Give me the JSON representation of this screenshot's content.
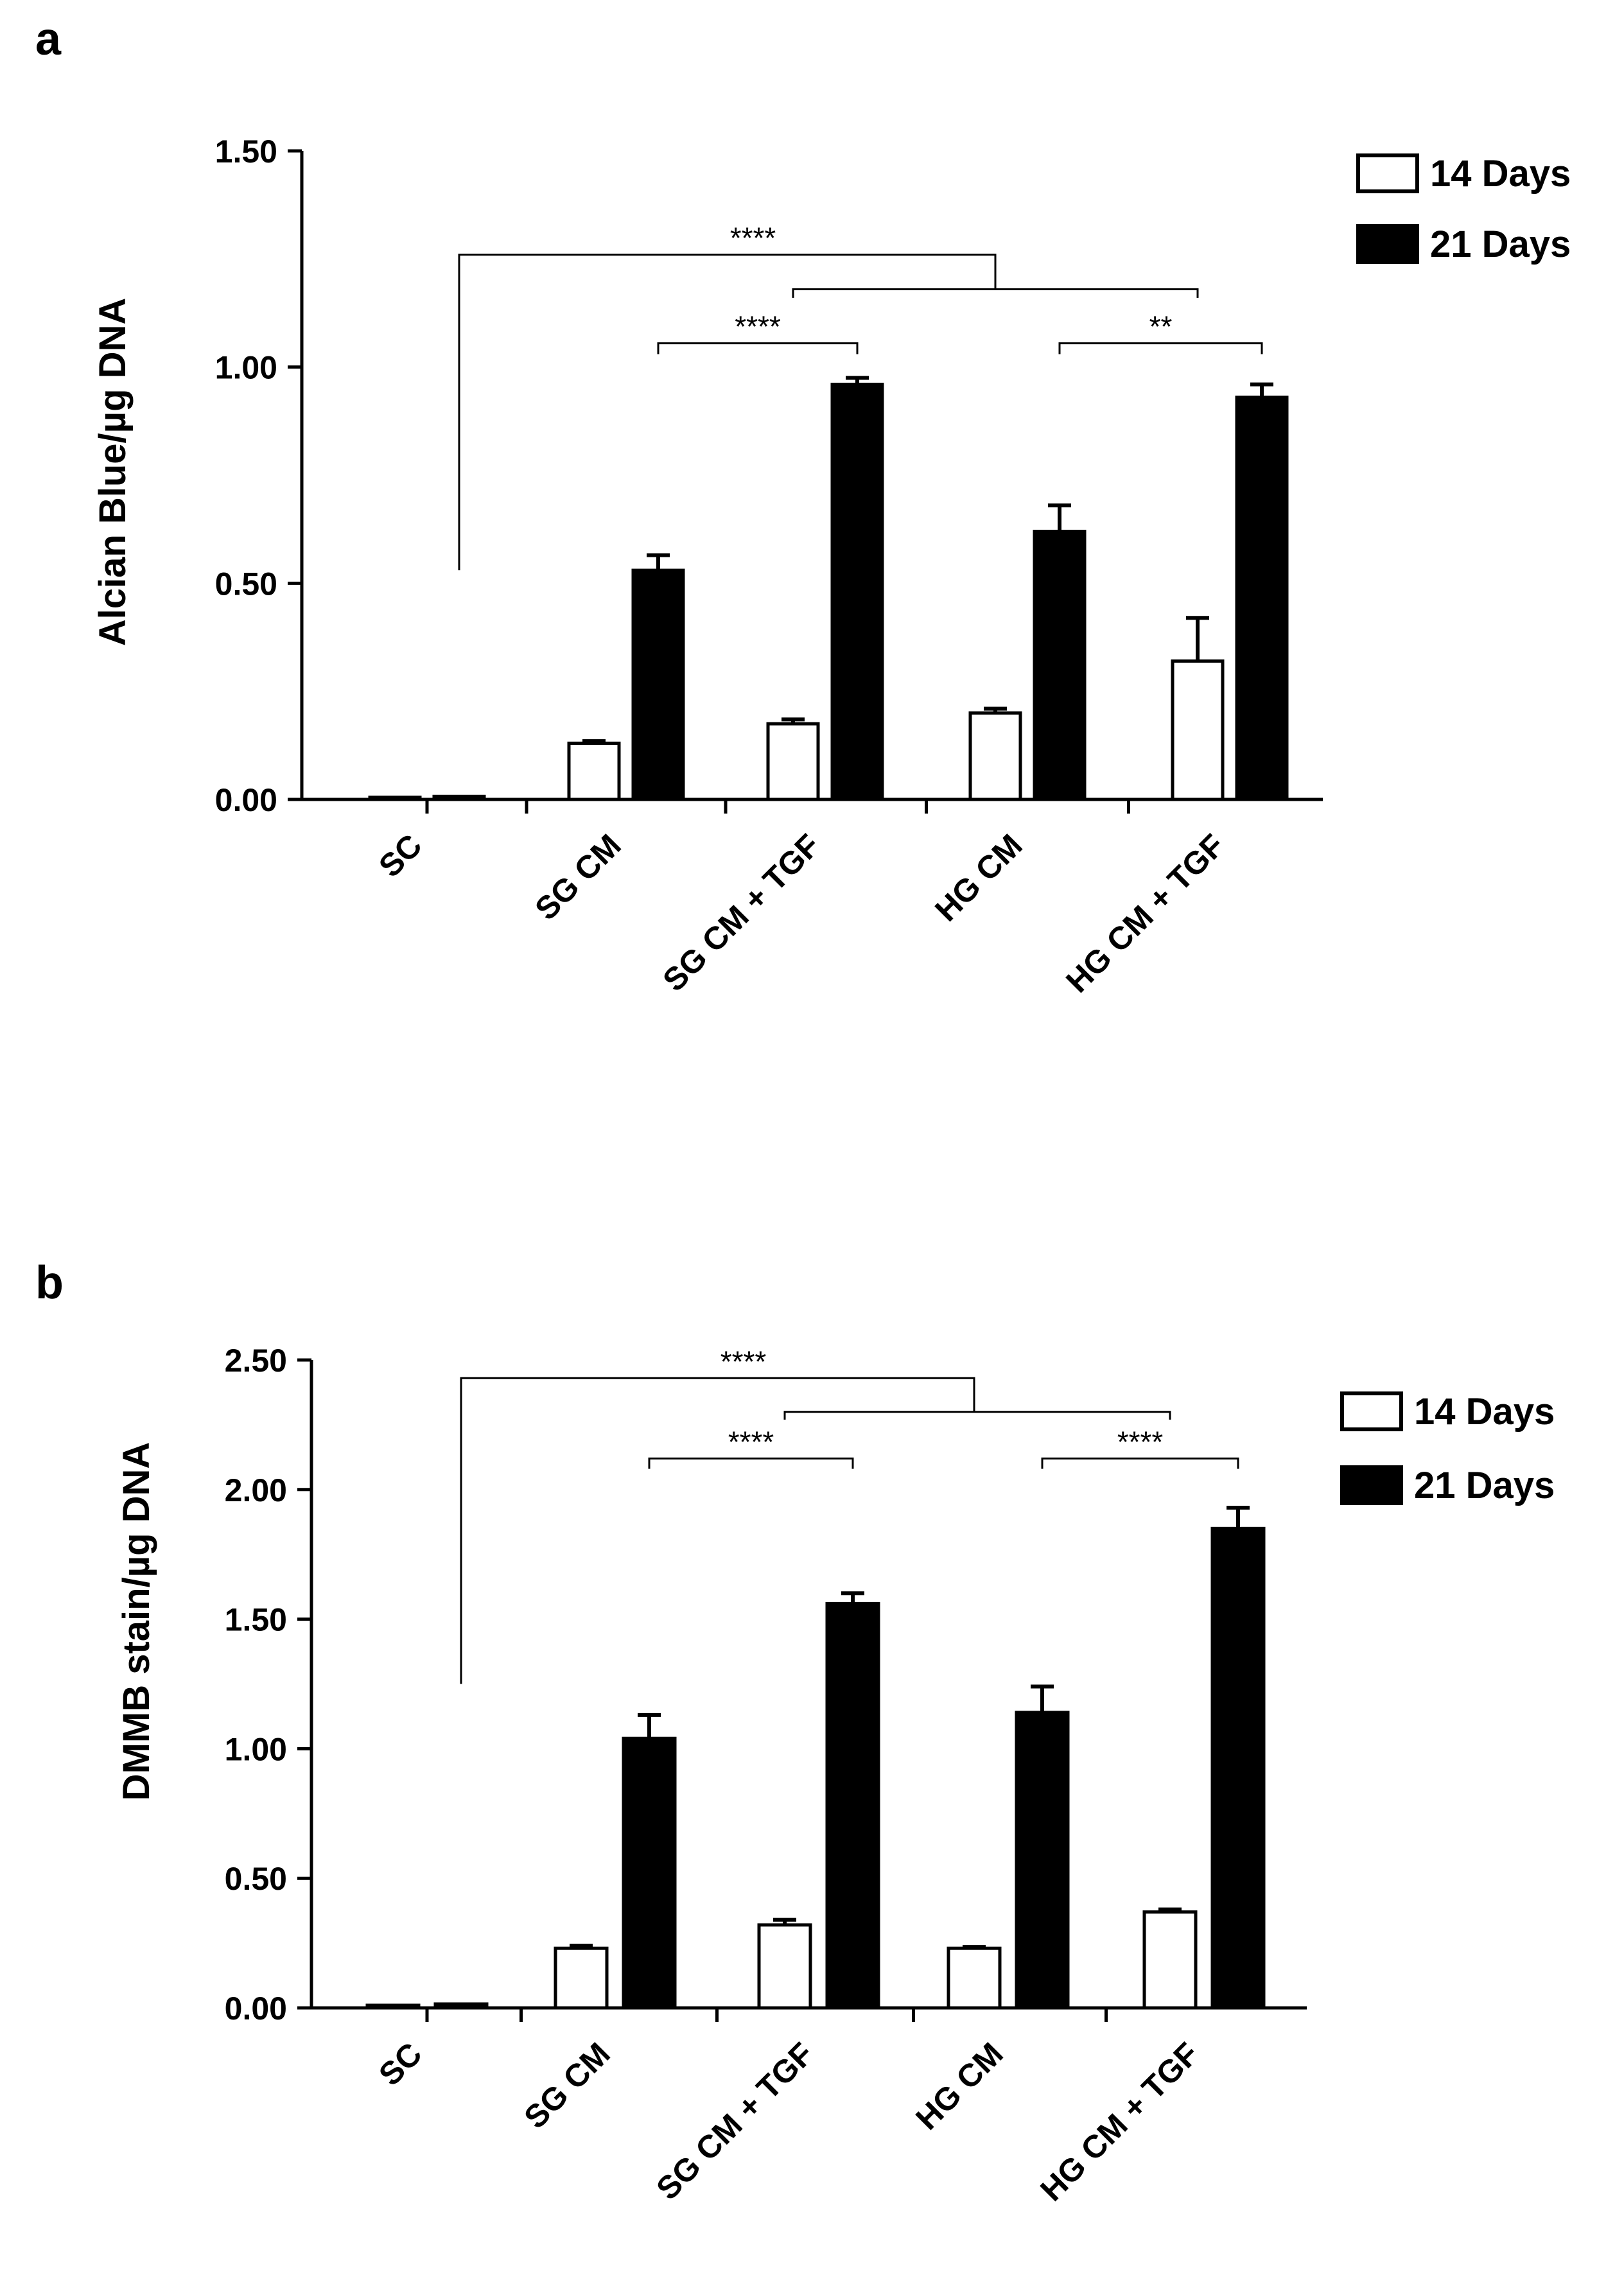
{
  "chart_data": [
    {
      "panel": "a",
      "type": "bar",
      "ylabel": "Alcian Blue/µg DNA",
      "ylim": [
        0,
        1.5
      ],
      "yticks": [
        "0.00",
        "0.50",
        "1.00",
        "1.50"
      ],
      "ytick_values": [
        0,
        0.5,
        1.0,
        1.5
      ],
      "categories": [
        "SC",
        "SG CM",
        "SG CM + TGF",
        "HG CM",
        "HG CM + TGF"
      ],
      "series": [
        {
          "name": "14 Days",
          "color": "#ffffff",
          "values": [
            0.005,
            0.13,
            0.175,
            0.2,
            0.32
          ],
          "errors": [
            0.0,
            0.005,
            0.01,
            0.01,
            0.1
          ]
        },
        {
          "name": "21 Days",
          "color": "#000000",
          "values": [
            0.007,
            0.53,
            0.96,
            0.62,
            0.93
          ],
          "errors": [
            0.0,
            0.035,
            0.015,
            0.06,
            0.03
          ]
        }
      ],
      "legend": [
        "14 Days",
        "21 Days"
      ],
      "significance": [
        "****",
        "****",
        "**"
      ],
      "sig_brackets": [
        {
          "label": "****",
          "kind": "compound",
          "left_x_cat": 0,
          "left_x_series": 1,
          "left_low": 0.53,
          "center_x_cat": 3,
          "center_x_series": 0,
          "level": 1.26,
          "right_low": 1.18
        },
        {
          "label": "",
          "kind": "plain",
          "from_cat": 2,
          "from_series": 0,
          "to_cat": 4,
          "to_series": 0,
          "level": 1.18,
          "tick_to": 1.16
        },
        {
          "label": "****",
          "kind": "plain",
          "from_cat": 1,
          "from_series": 1,
          "to_cat": 2,
          "to_series": 1,
          "level": 1.055,
          "tick_to": 1.03
        },
        {
          "label": "**",
          "kind": "plain",
          "from_cat": 3,
          "from_series": 1,
          "to_cat": 4,
          "to_series": 1,
          "level": 1.055,
          "tick_to": 1.03
        }
      ]
    },
    {
      "panel": "b",
      "type": "bar",
      "ylabel": "DMMB stain/µg DNA",
      "ylim": [
        0,
        2.5
      ],
      "yticks": [
        "0.00",
        "0.50",
        "1.00",
        "1.50",
        "2.00",
        "2.50"
      ],
      "ytick_values": [
        0,
        0.5,
        1.0,
        1.5,
        2.0,
        2.5
      ],
      "categories": [
        "SC",
        "SG CM",
        "SG CM + TGF",
        "HG CM",
        "HG CM + TGF"
      ],
      "series": [
        {
          "name": "14 Days",
          "color": "#ffffff",
          "values": [
            0.01,
            0.23,
            0.32,
            0.23,
            0.37
          ],
          "errors": [
            0.0,
            0.01,
            0.02,
            0.005,
            0.01
          ]
        },
        {
          "name": "21 Days",
          "color": "#000000",
          "values": [
            0.015,
            1.04,
            1.56,
            1.14,
            1.85
          ],
          "errors": [
            0.0,
            0.09,
            0.04,
            0.1,
            0.08
          ]
        }
      ],
      "legend": [
        "14 Days",
        "21 Days"
      ],
      "significance": [
        "****",
        "****",
        "****"
      ],
      "sig_brackets": [
        {
          "label": "****",
          "kind": "compound",
          "left_x_cat": 0,
          "left_x_series": 1,
          "left_low": 1.25,
          "center_x_cat": 3,
          "center_x_series": 0,
          "level": 2.43,
          "right_low": 2.3
        },
        {
          "label": "",
          "kind": "plain",
          "from_cat": 2,
          "from_series": 0,
          "to_cat": 4,
          "to_series": 0,
          "level": 2.3,
          "tick_to": 2.27
        },
        {
          "label": "****",
          "kind": "plain",
          "from_cat": 1,
          "from_series": 1,
          "to_cat": 2,
          "to_series": 1,
          "level": 2.12,
          "tick_to": 2.08
        },
        {
          "label": "****",
          "kind": "plain",
          "from_cat": 3,
          "from_series": 1,
          "to_cat": 4,
          "to_series": 1,
          "level": 2.12,
          "tick_to": 2.08
        }
      ]
    }
  ]
}
